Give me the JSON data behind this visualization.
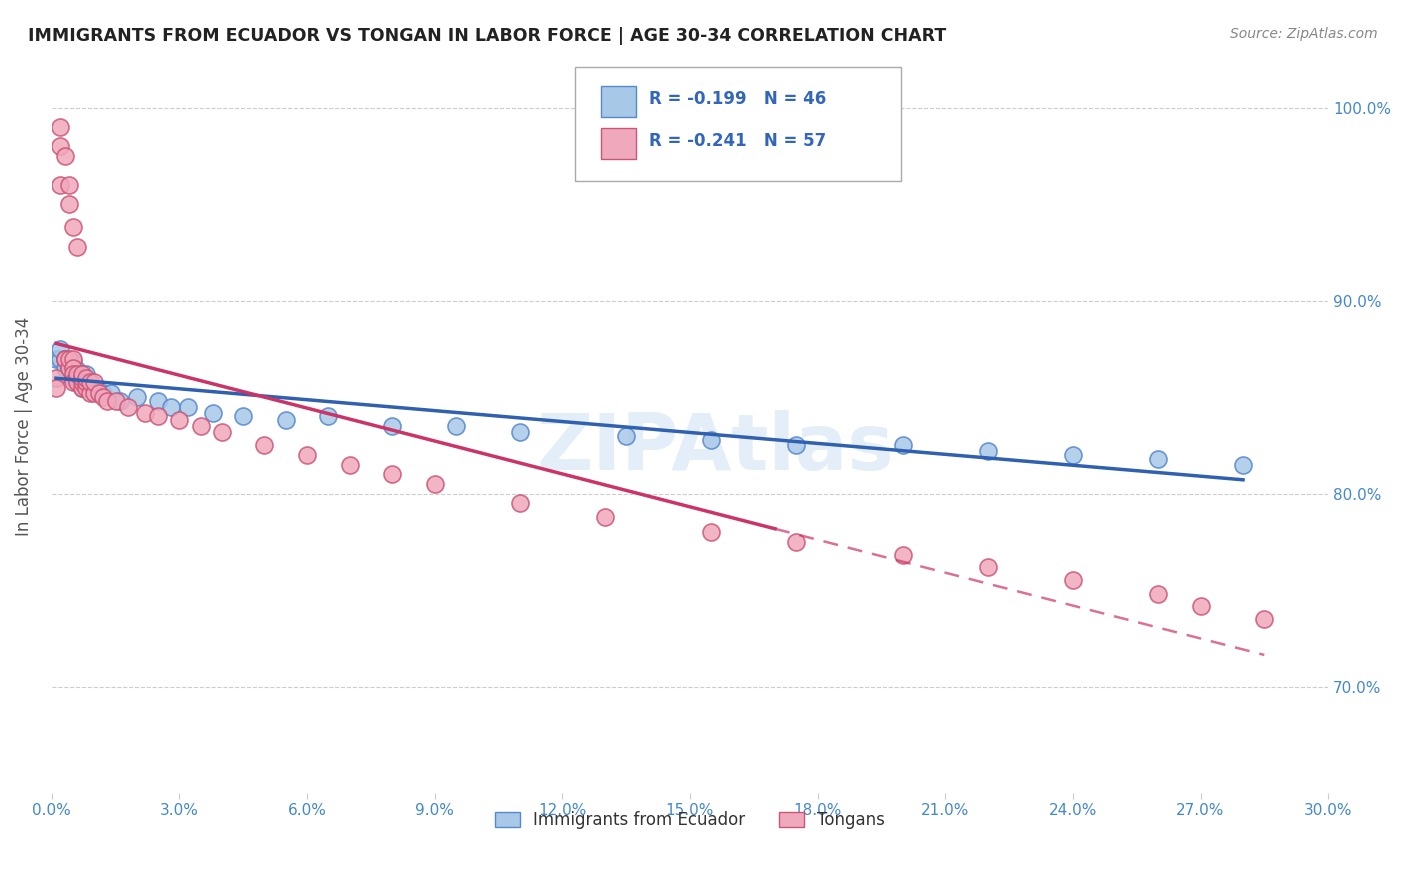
{
  "title": "IMMIGRANTS FROM ECUADOR VS TONGAN IN LABOR FORCE | AGE 30-34 CORRELATION CHART",
  "source": "Source: ZipAtlas.com",
  "ylabel": "In Labor Force | Age 30-34",
  "xlim": [
    0.0,
    0.3
  ],
  "ylim": [
    0.645,
    1.025
  ],
  "xticks": [
    0.0,
    0.03,
    0.06,
    0.09,
    0.12,
    0.15,
    0.18,
    0.21,
    0.24,
    0.27,
    0.3
  ],
  "xticklabels": [
    "0.0%",
    "3.0%",
    "6.0%",
    "9.0%",
    "12.0%",
    "15.0%",
    "18.0%",
    "21.0%",
    "24.0%",
    "27.0%",
    "30.0%"
  ],
  "ytick_positions": [
    0.7,
    0.8,
    0.9,
    1.0
  ],
  "ytick_labels": [
    "70.0%",
    "80.0%",
    "90.0%",
    "100.0%"
  ],
  "legend_R_ecuador": "R = -0.199",
  "legend_N_ecuador": "N = 46",
  "legend_R_tongan": "R = -0.241",
  "legend_N_tongan": "N = 57",
  "legend_label_ecuador": "Immigrants from Ecuador",
  "legend_label_tongan": "Tongans",
  "ecuador_color": "#a8c8e8",
  "tongan_color": "#f0a8bc",
  "ecuador_edge": "#5588cc",
  "tongan_edge": "#cc5577",
  "trend_ecuador_color": "#3060b0",
  "trend_tongan_color": "#cc3366",
  "watermark": "ZIPAtlas",
  "background_color": "#ffffff",
  "grid_color": "#cccccc",
  "ecuador_x": [
    0.001,
    0.002,
    0.002,
    0.003,
    0.003,
    0.003,
    0.004,
    0.004,
    0.004,
    0.005,
    0.005,
    0.005,
    0.005,
    0.006,
    0.006,
    0.006,
    0.007,
    0.007,
    0.007,
    0.008,
    0.008,
    0.009,
    0.01,
    0.011,
    0.012,
    0.014,
    0.016,
    0.02,
    0.025,
    0.028,
    0.032,
    0.038,
    0.045,
    0.055,
    0.065,
    0.08,
    0.095,
    0.11,
    0.135,
    0.155,
    0.175,
    0.2,
    0.22,
    0.24,
    0.26,
    0.28
  ],
  "ecuador_y": [
    0.87,
    0.87,
    0.875,
    0.865,
    0.87,
    0.87,
    0.865,
    0.865,
    0.868,
    0.86,
    0.862,
    0.868,
    0.865,
    0.862,
    0.858,
    0.864,
    0.858,
    0.862,
    0.855,
    0.858,
    0.862,
    0.858,
    0.855,
    0.852,
    0.852,
    0.852,
    0.848,
    0.85,
    0.848,
    0.845,
    0.845,
    0.842,
    0.84,
    0.838,
    0.84,
    0.835,
    0.835,
    0.832,
    0.83,
    0.828,
    0.825,
    0.825,
    0.822,
    0.82,
    0.818,
    0.815
  ],
  "tongan_x": [
    0.001,
    0.001,
    0.002,
    0.002,
    0.002,
    0.003,
    0.003,
    0.003,
    0.004,
    0.004,
    0.004,
    0.004,
    0.005,
    0.005,
    0.005,
    0.005,
    0.005,
    0.006,
    0.006,
    0.006,
    0.006,
    0.007,
    0.007,
    0.007,
    0.007,
    0.008,
    0.008,
    0.008,
    0.009,
    0.009,
    0.01,
    0.01,
    0.011,
    0.012,
    0.013,
    0.015,
    0.018,
    0.022,
    0.025,
    0.03,
    0.035,
    0.04,
    0.05,
    0.06,
    0.07,
    0.08,
    0.09,
    0.11,
    0.13,
    0.155,
    0.175,
    0.2,
    0.22,
    0.24,
    0.26,
    0.27,
    0.285
  ],
  "tongan_y": [
    0.86,
    0.855,
    0.98,
    0.99,
    0.96,
    0.87,
    0.87,
    0.975,
    0.96,
    0.865,
    0.95,
    0.87,
    0.87,
    0.865,
    0.862,
    0.858,
    0.938,
    0.86,
    0.858,
    0.862,
    0.928,
    0.855,
    0.858,
    0.86,
    0.862,
    0.855,
    0.858,
    0.86,
    0.852,
    0.858,
    0.852,
    0.858,
    0.852,
    0.85,
    0.848,
    0.848,
    0.845,
    0.842,
    0.84,
    0.838,
    0.835,
    0.832,
    0.825,
    0.82,
    0.815,
    0.81,
    0.805,
    0.795,
    0.788,
    0.78,
    0.775,
    0.768,
    0.762,
    0.755,
    0.748,
    0.742,
    0.735
  ]
}
